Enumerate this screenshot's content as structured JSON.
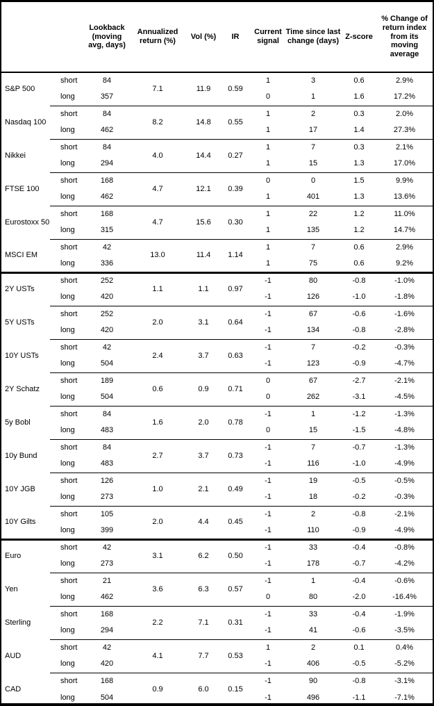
{
  "chart_data": {
    "type": "table",
    "headers": [
      "",
      "",
      "Lookback (moving avg, days)",
      "Annualized return (%)",
      "Vol (%)",
      "IR",
      "Current signal",
      "Time since last change (days)",
      "Z-score",
      "% Change of return index from its moving average"
    ],
    "sections": [
      {
        "groups": [
          {
            "instrument": "S&P 500",
            "annualized_return": "7.1",
            "vol": "11.9",
            "ir": "0.59",
            "rows": [
              {
                "leg": "short",
                "lookback": "84",
                "signal": "1",
                "time_since": "3",
                "z_score": "0.6",
                "pct_change": "2.9%"
              },
              {
                "leg": "long",
                "lookback": "357",
                "signal": "0",
                "time_since": "1",
                "z_score": "1.6",
                "pct_change": "17.2%"
              }
            ]
          },
          {
            "instrument": "Nasdaq 100",
            "annualized_return": "8.2",
            "vol": "14.8",
            "ir": "0.55",
            "rows": [
              {
                "leg": "short",
                "lookback": "84",
                "signal": "1",
                "time_since": "2",
                "z_score": "0.3",
                "pct_change": "2.0%"
              },
              {
                "leg": "long",
                "lookback": "462",
                "signal": "1",
                "time_since": "17",
                "z_score": "1.4",
                "pct_change": "27.3%"
              }
            ]
          },
          {
            "instrument": "Nikkei",
            "annualized_return": "4.0",
            "vol": "14.4",
            "ir": "0.27",
            "rows": [
              {
                "leg": "short",
                "lookback": "84",
                "signal": "1",
                "time_since": "7",
                "z_score": "0.3",
                "pct_change": "2.1%"
              },
              {
                "leg": "long",
                "lookback": "294",
                "signal": "1",
                "time_since": "15",
                "z_score": "1.3",
                "pct_change": "17.0%"
              }
            ]
          },
          {
            "instrument": "FTSE 100",
            "annualized_return": "4.7",
            "vol": "12.1",
            "ir": "0.39",
            "rows": [
              {
                "leg": "short",
                "lookback": "168",
                "signal": "0",
                "time_since": "0",
                "z_score": "1.5",
                "pct_change": "9.9%"
              },
              {
                "leg": "long",
                "lookback": "462",
                "signal": "1",
                "time_since": "401",
                "z_score": "1.3",
                "pct_change": "13.6%"
              }
            ]
          },
          {
            "instrument": "Eurostoxx 50",
            "annualized_return": "4.7",
            "vol": "15.6",
            "ir": "0.30",
            "rows": [
              {
                "leg": "short",
                "lookback": "168",
                "signal": "1",
                "time_since": "22",
                "z_score": "1.2",
                "pct_change": "11.0%"
              },
              {
                "leg": "long",
                "lookback": "315",
                "signal": "1",
                "time_since": "135",
                "z_score": "1.2",
                "pct_change": "14.7%"
              }
            ]
          },
          {
            "instrument": "MSCI EM",
            "annualized_return": "13.0",
            "vol": "11.4",
            "ir": "1.14",
            "rows": [
              {
                "leg": "short",
                "lookback": "42",
                "signal": "1",
                "time_since": "7",
                "z_score": "0.6",
                "pct_change": "2.9%"
              },
              {
                "leg": "long",
                "lookback": "336",
                "signal": "1",
                "time_since": "75",
                "z_score": "0.6",
                "pct_change": "9.2%"
              }
            ]
          }
        ]
      },
      {
        "groups": [
          {
            "instrument": "2Y USTs",
            "annualized_return": "1.1",
            "vol": "1.1",
            "ir": "0.97",
            "rows": [
              {
                "leg": "short",
                "lookback": "252",
                "signal": "-1",
                "time_since": "80",
                "z_score": "-0.8",
                "pct_change": "-1.0%"
              },
              {
                "leg": "long",
                "lookback": "420",
                "signal": "-1",
                "time_since": "126",
                "z_score": "-1.0",
                "pct_change": "-1.8%"
              }
            ]
          },
          {
            "instrument": "5Y USTs",
            "annualized_return": "2.0",
            "vol": "3.1",
            "ir": "0.64",
            "rows": [
              {
                "leg": "short",
                "lookback": "252",
                "signal": "-1",
                "time_since": "67",
                "z_score": "-0.6",
                "pct_change": "-1.6%"
              },
              {
                "leg": "long",
                "lookback": "420",
                "signal": "-1",
                "time_since": "134",
                "z_score": "-0.8",
                "pct_change": "-2.8%"
              }
            ]
          },
          {
            "instrument": "10Y USTs",
            "annualized_return": "2.4",
            "vol": "3.7",
            "ir": "0.63",
            "rows": [
              {
                "leg": "short",
                "lookback": "42",
                "signal": "-1",
                "time_since": "7",
                "z_score": "-0.2",
                "pct_change": "-0.3%"
              },
              {
                "leg": "long",
                "lookback": "504",
                "signal": "-1",
                "time_since": "123",
                "z_score": "-0.9",
                "pct_change": "-4.7%"
              }
            ]
          },
          {
            "instrument": "2Y Schatz",
            "annualized_return": "0.6",
            "vol": "0.9",
            "ir": "0.71",
            "rows": [
              {
                "leg": "short",
                "lookback": "189",
                "signal": "0",
                "time_since": "67",
                "z_score": "-2.7",
                "pct_change": "-2.1%"
              },
              {
                "leg": "long",
                "lookback": "504",
                "signal": "0",
                "time_since": "262",
                "z_score": "-3.1",
                "pct_change": "-4.5%"
              }
            ]
          },
          {
            "instrument": "5y Bobl",
            "annualized_return": "1.6",
            "vol": "2.0",
            "ir": "0.78",
            "rows": [
              {
                "leg": "short",
                "lookback": "84",
                "signal": "-1",
                "time_since": "1",
                "z_score": "-1.2",
                "pct_change": "-1.3%"
              },
              {
                "leg": "long",
                "lookback": "483",
                "signal": "0",
                "time_since": "15",
                "z_score": "-1.5",
                "pct_change": "-4.8%"
              }
            ]
          },
          {
            "instrument": "10y Bund",
            "annualized_return": "2.7",
            "vol": "3.7",
            "ir": "0.73",
            "rows": [
              {
                "leg": "short",
                "lookback": "84",
                "signal": "-1",
                "time_since": "7",
                "z_score": "-0.7",
                "pct_change": "-1.3%"
              },
              {
                "leg": "long",
                "lookback": "483",
                "signal": "-1",
                "time_since": "116",
                "z_score": "-1.0",
                "pct_change": "-4.9%"
              }
            ]
          },
          {
            "instrument": "10Y JGB",
            "annualized_return": "1.0",
            "vol": "2.1",
            "ir": "0.49",
            "rows": [
              {
                "leg": "short",
                "lookback": "126",
                "signal": "-1",
                "time_since": "19",
                "z_score": "-0.5",
                "pct_change": "-0.5%"
              },
              {
                "leg": "long",
                "lookback": "273",
                "signal": "-1",
                "time_since": "18",
                "z_score": "-0.2",
                "pct_change": "-0.3%"
              }
            ]
          },
          {
            "instrument": "10Y Gilts",
            "annualized_return": "2.0",
            "vol": "4.4",
            "ir": "0.45",
            "rows": [
              {
                "leg": "short",
                "lookback": "105",
                "signal": "-1",
                "time_since": "2",
                "z_score": "-0.8",
                "pct_change": "-2.1%"
              },
              {
                "leg": "long",
                "lookback": "399",
                "signal": "-1",
                "time_since": "110",
                "z_score": "-0.9",
                "pct_change": "-4.9%"
              }
            ]
          }
        ]
      },
      {
        "groups": [
          {
            "instrument": "Euro",
            "annualized_return": "3.1",
            "vol": "6.2",
            "ir": "0.50",
            "rows": [
              {
                "leg": "short",
                "lookback": "42",
                "signal": "-1",
                "time_since": "33",
                "z_score": "-0.4",
                "pct_change": "-0.8%"
              },
              {
                "leg": "long",
                "lookback": "273",
                "signal": "-1",
                "time_since": "178",
                "z_score": "-0.7",
                "pct_change": "-4.2%"
              }
            ]
          },
          {
            "instrument": "Yen",
            "annualized_return": "3.6",
            "vol": "6.3",
            "ir": "0.57",
            "rows": [
              {
                "leg": "short",
                "lookback": "21",
                "signal": "-1",
                "time_since": "1",
                "z_score": "-0.4",
                "pct_change": "-0.6%"
              },
              {
                "leg": "long",
                "lookback": "462",
                "signal": "0",
                "time_since": "80",
                "z_score": "-2.0",
                "pct_change": "-16.4%"
              }
            ]
          },
          {
            "instrument": "Sterling",
            "annualized_return": "2.2",
            "vol": "7.1",
            "ir": "0.31",
            "rows": [
              {
                "leg": "short",
                "lookback": "168",
                "signal": "-1",
                "time_since": "33",
                "z_score": "-0.4",
                "pct_change": "-1.9%"
              },
              {
                "leg": "long",
                "lookback": "294",
                "signal": "-1",
                "time_since": "41",
                "z_score": "-0.6",
                "pct_change": "-3.5%"
              }
            ]
          },
          {
            "instrument": "AUD",
            "annualized_return": "4.1",
            "vol": "7.7",
            "ir": "0.53",
            "rows": [
              {
                "leg": "short",
                "lookback": "42",
                "signal": "1",
                "time_since": "2",
                "z_score": "0.1",
                "pct_change": "0.4%"
              },
              {
                "leg": "long",
                "lookback": "420",
                "signal": "-1",
                "time_since": "406",
                "z_score": "-0.5",
                "pct_change": "-5.2%"
              }
            ]
          },
          {
            "instrument": "CAD",
            "annualized_return": "0.9",
            "vol": "6.0",
            "ir": "0.15",
            "rows": [
              {
                "leg": "short",
                "lookback": "168",
                "signal": "-1",
                "time_since": "90",
                "z_score": "-0.8",
                "pct_change": "-3.1%"
              },
              {
                "leg": "long",
                "lookback": "504",
                "signal": "-1",
                "time_since": "496",
                "z_score": "-1.1",
                "pct_change": "-7.1%"
              }
            ]
          }
        ]
      }
    ]
  }
}
